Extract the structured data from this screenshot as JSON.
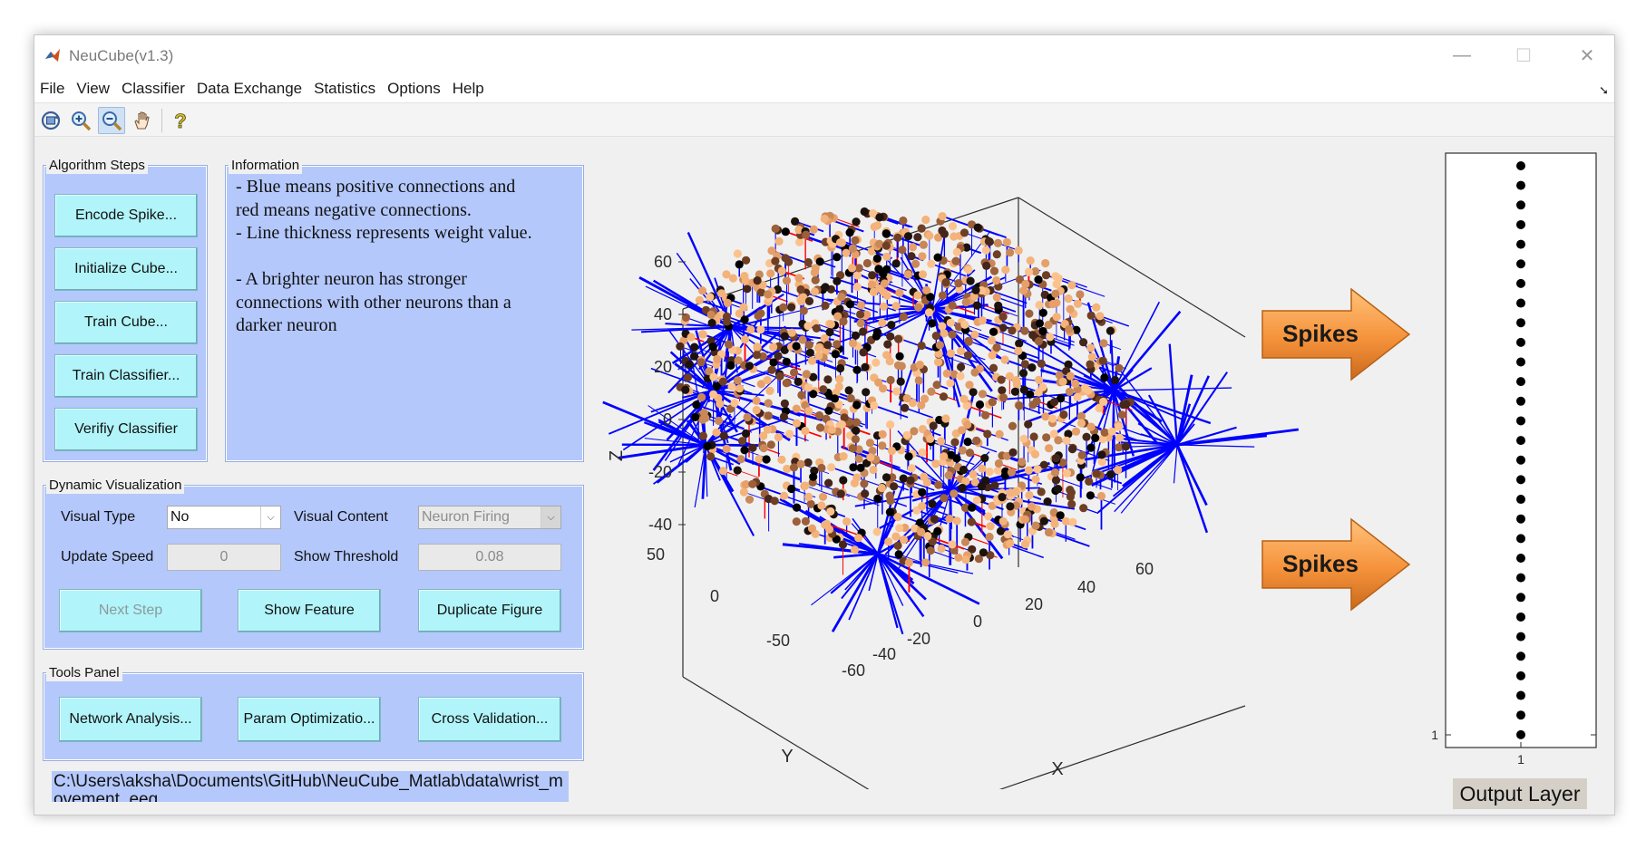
{
  "window": {
    "title": "NeuCube(v1.3)"
  },
  "window_controls": {
    "minimize": "—",
    "maximize": "☐",
    "close": "✕"
  },
  "menu": {
    "items": [
      "File",
      "View",
      "Classifier",
      "Data Exchange",
      "Statistics",
      "Options",
      "Help"
    ]
  },
  "toolbar": {
    "tools": [
      "rotate-3d-icon",
      "zoom-in-icon",
      "zoom-out-icon",
      "pan-hand-icon",
      "help-icon"
    ],
    "active_tool": "zoom-out-icon"
  },
  "algorithm_steps": {
    "title": "Algorithm Steps",
    "buttons": [
      "Encode Spike...",
      "Initialize Cube...",
      "Train Cube...",
      "Train Classifier...",
      "Verifiy Classifier"
    ]
  },
  "information": {
    "title": "Information",
    "lines": [
      "- Blue means positive connections and",
      "red means negative connections.",
      "- Line thickness represents weight value.",
      "",
      "- A brighter neuron has stronger",
      "connections with other neurons than a",
      "darker neuron"
    ]
  },
  "dynamic_visualization": {
    "title": "Dynamic Visualization",
    "visual_type_label": "Visual Type",
    "visual_type_value": "No",
    "visual_content_label": "Visual Content",
    "visual_content_value": "Neuron Firing",
    "update_speed_label": "Update Speed",
    "update_speed_value": "0",
    "show_threshold_label": "Show Threshold",
    "show_threshold_value": "0.08",
    "next_step": "Next Step",
    "show_feature": "Show Feature",
    "duplicate_figure": "Duplicate Figure"
  },
  "tools_panel": {
    "title": "Tools Panel",
    "buttons": [
      "Network Analysis...",
      "Param Optimizatio...",
      "Cross Validation..."
    ]
  },
  "file_path": "C:\\Users\\aksha\\Documents\\GitHub\\NeuCube_Matlab\\data\\wrist_movement_eeg",
  "cube_plot": {
    "z_ticks": [
      "60",
      "40",
      "20",
      "0",
      "-20",
      "-40"
    ],
    "y_ticks": [
      "50",
      "0",
      "-50"
    ],
    "x_ticks": [
      "-60",
      "-40",
      "-20",
      "0",
      "20",
      "40",
      "60"
    ],
    "xlabel": "X",
    "ylabel": "Y",
    "zlabel": "Z",
    "positive_color": "#0000ff",
    "negative_color": "#ff0000"
  },
  "spikes": {
    "label": "Spikes",
    "color": "#f5923b"
  },
  "output_layer": {
    "label": "Output Layer",
    "x_tick": "1",
    "y_tick": "1",
    "neuron_count": 30
  }
}
